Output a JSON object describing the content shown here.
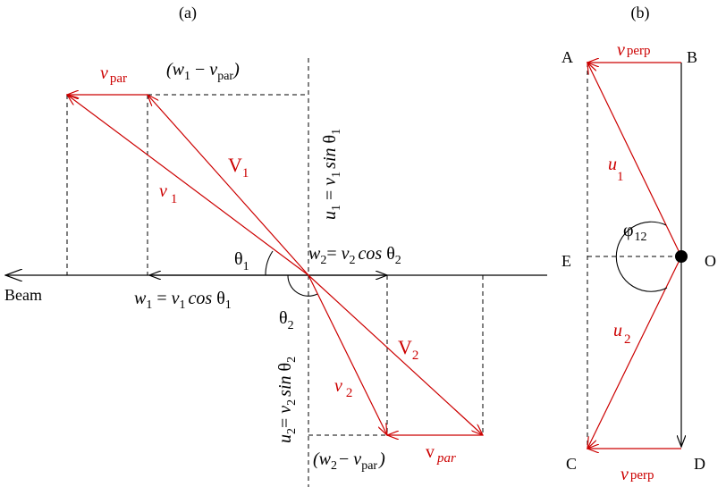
{
  "colors": {
    "black": "#000000",
    "red": "#cc0000",
    "background": "#ffffff"
  },
  "panel_a": {
    "label": "(a)",
    "beam": "Beam",
    "v_par": {
      "v": "v",
      "sub": "par"
    },
    "w1_minus_vpar": {
      "open": "(",
      "w": "w",
      "w_sub": "1",
      "minus": " − ",
      "v": "v",
      "v_sub": "par",
      "close": ")"
    },
    "V1": {
      "V": "V",
      "sub": "1"
    },
    "v1": {
      "v": "v",
      "sub": "1"
    },
    "u1_eq": {
      "u": "u",
      "u_sub": "1",
      "eq": " = ",
      "v": "v",
      "v_sub": "1",
      "fn": "sin",
      "theta": "θ",
      "theta_sub": "1"
    },
    "theta1": {
      "theta": "θ",
      "sub": "1"
    },
    "theta2": {
      "theta": "θ",
      "sub": "2"
    },
    "w2_eq": {
      "w": "w",
      "w_sub": "2",
      "eq": "= ",
      "v": "v",
      "v_sub": "2",
      "fn": "cos",
      "theta": "θ",
      "theta_sub": "2"
    },
    "w1_eq": {
      "w": "w",
      "w_sub": "1",
      "eq": " = ",
      "v": "v",
      "v_sub": "1",
      "fn": "cos",
      "theta": "θ",
      "theta_sub": "1"
    },
    "u2_eq": {
      "u": "u",
      "u_sub": "2",
      "eq": "= ",
      "v": "v",
      "v_sub": "2",
      "fn": "sin",
      "theta": "θ",
      "theta_sub": "2"
    },
    "v2": {
      "v": "v",
      "sub": "2"
    },
    "V2": {
      "V": "V",
      "sub": "2"
    },
    "w2_minus_vpar": {
      "open": "(",
      "w": "w",
      "w_sub": "2",
      "minus": "− ",
      "v": "v",
      "v_sub": "par",
      "close": ")"
    },
    "vpar_bottom": {
      "v": "v",
      "sub": "par"
    }
  },
  "panel_b": {
    "label": "(b)",
    "A": "A",
    "B": "B",
    "C": "C",
    "D": "D",
    "E": "E",
    "O": "O",
    "v_perp_top": {
      "v": "v",
      "sub": "perp"
    },
    "v_perp_bottom": {
      "v": "v",
      "sub": "perp"
    },
    "u1": {
      "u": "u",
      "sub": "1"
    },
    "u2": {
      "u": "u",
      "sub": "2"
    },
    "phi12": {
      "phi": "φ",
      "sub": "12"
    }
  }
}
